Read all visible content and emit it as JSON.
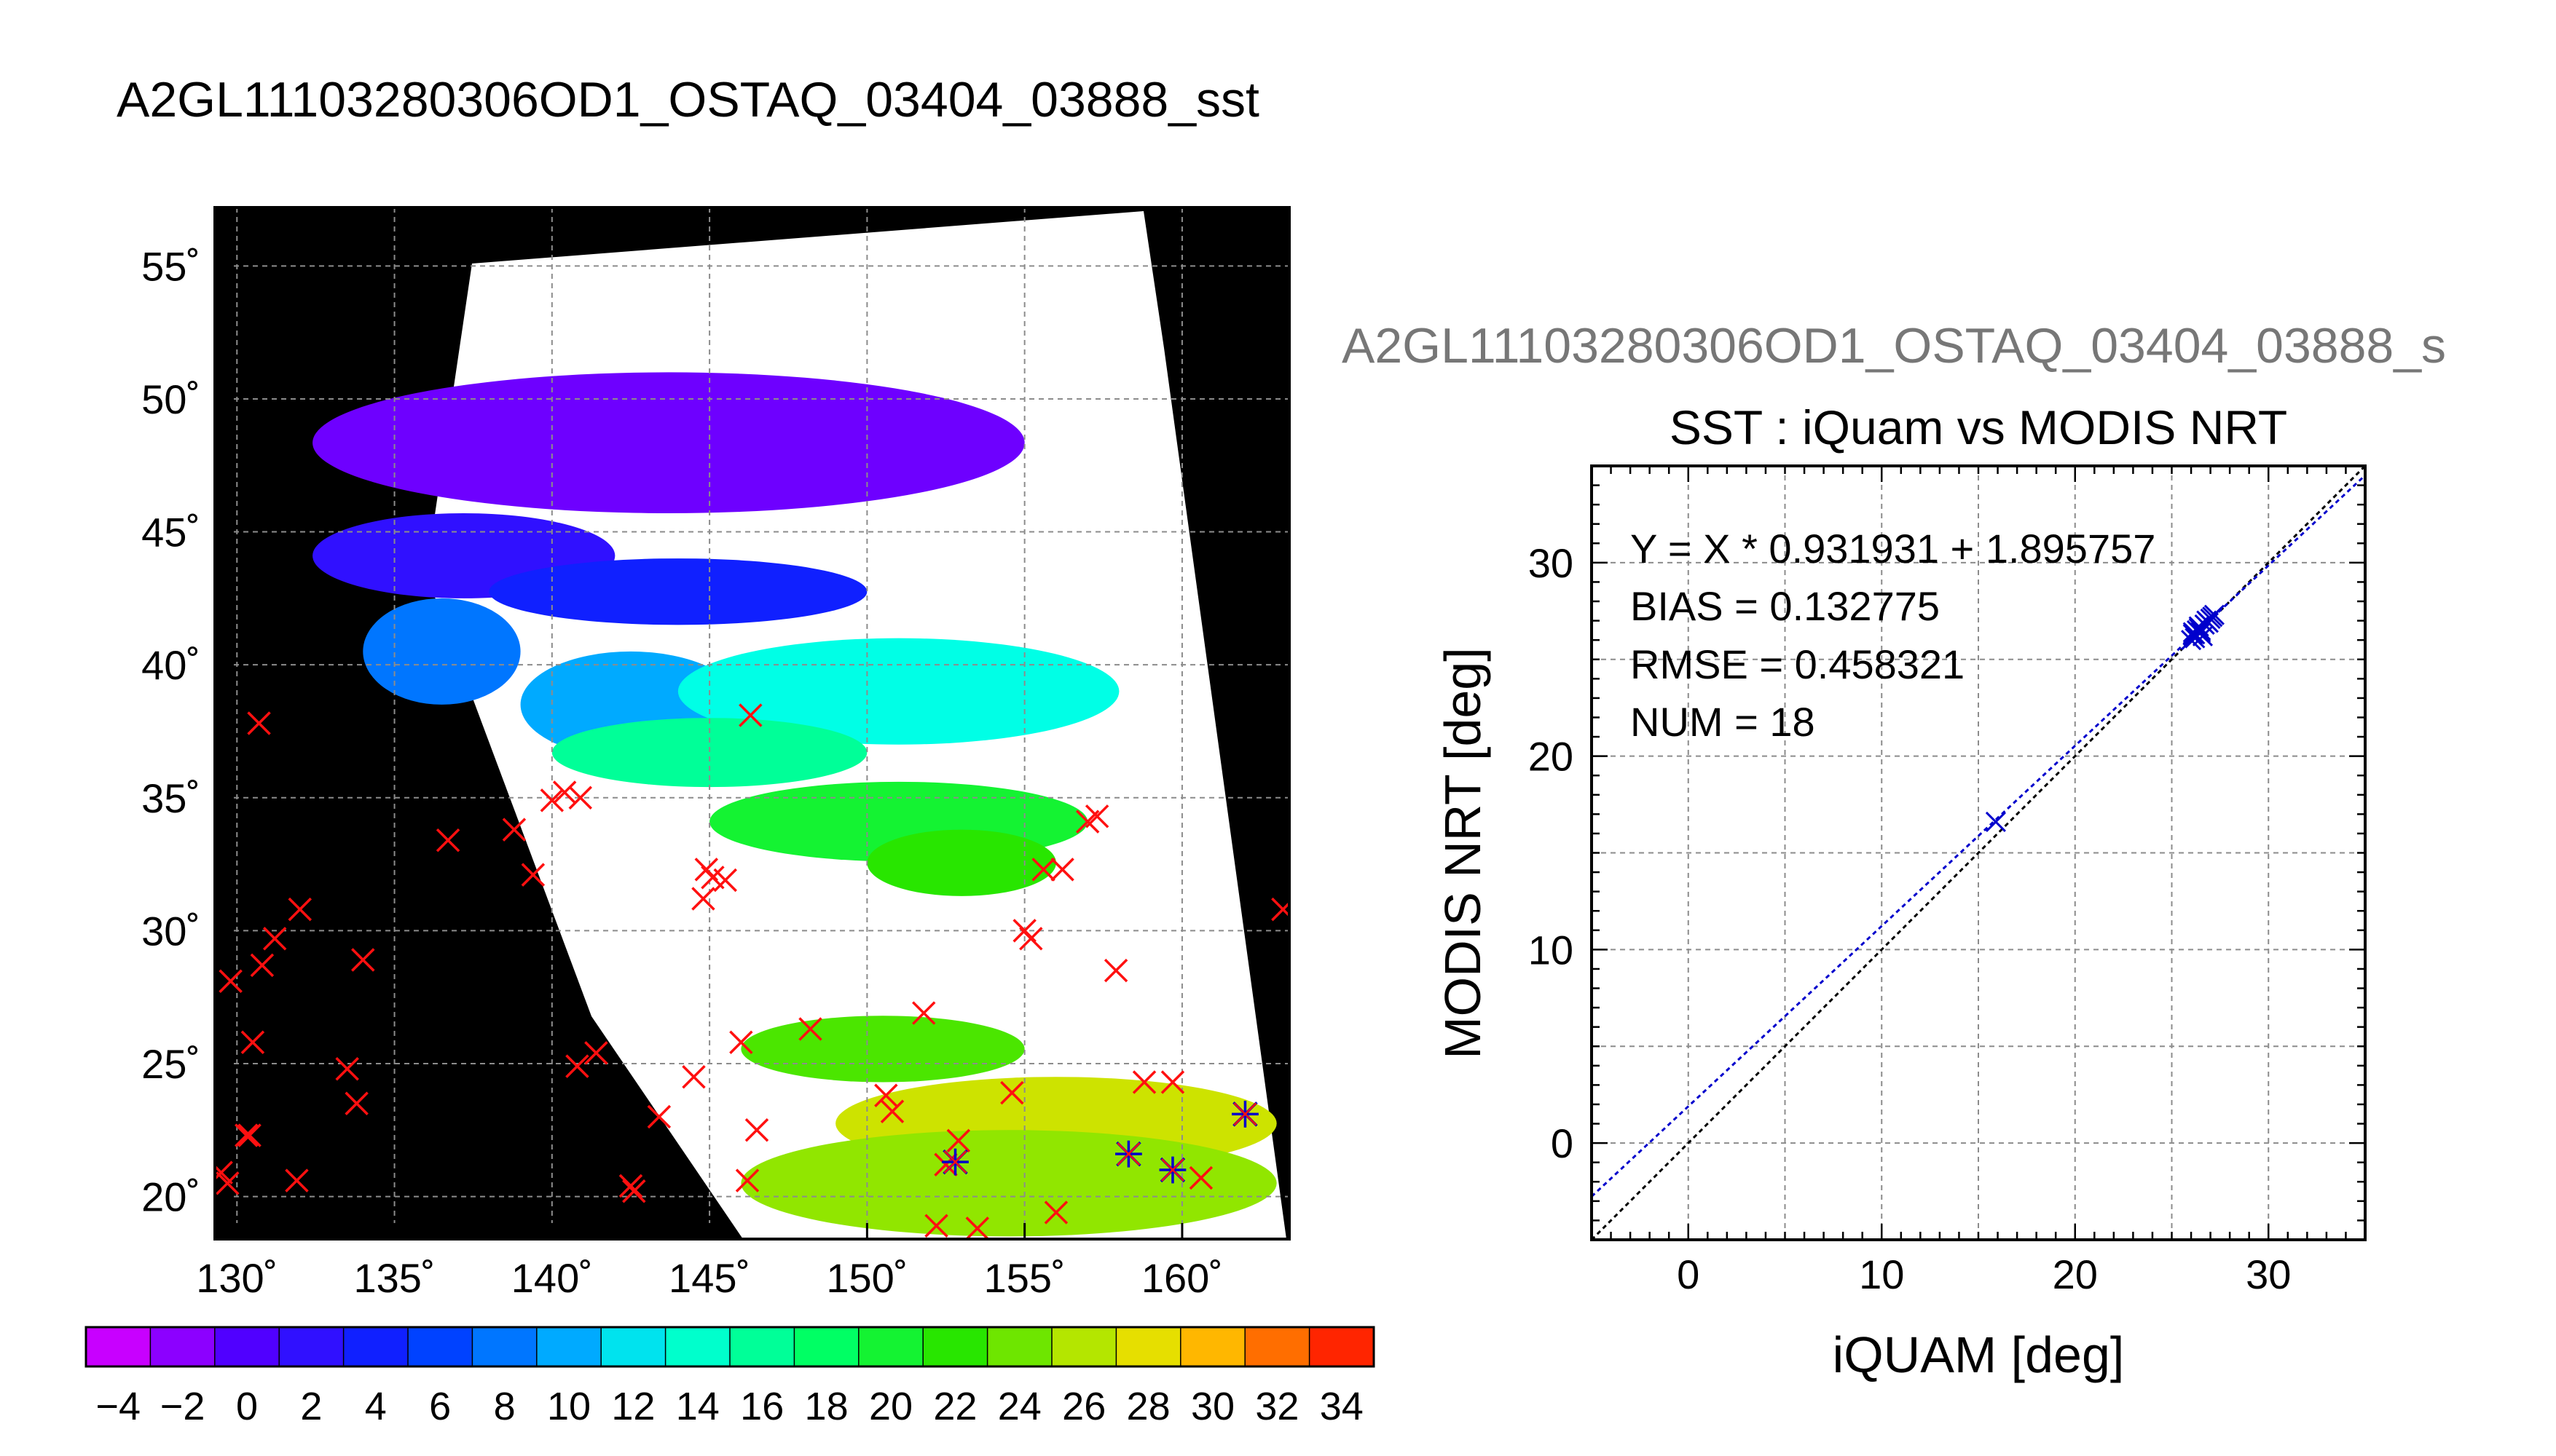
{
  "page": {
    "title": "A2GL11103280306OD1_OSTAQ_03404_03888_sst",
    "right_title": "A2GL11103280306OD1_OSTAQ_03404_03888_s"
  },
  "colors": {
    "map_background": "#000000",
    "land": "#ffffff",
    "match_marker": "#ff1010",
    "matchup_marker": "#0000cc",
    "fit_line": "#0000cc",
    "one_to_one_line": "#000000",
    "grid": "#888888"
  },
  "chart_data": [
    {
      "type": "scatter",
      "subtype": "map",
      "lon_ticks": [
        130,
        135,
        140,
        145,
        150,
        155,
        160
      ],
      "lon_tick_labels": [
        "130˚",
        "135˚",
        "140˚",
        "145˚",
        "150˚",
        "155˚",
        "160˚"
      ],
      "lat_ticks": [
        20,
        25,
        30,
        35,
        40,
        45,
        50,
        55
      ],
      "lat_tick_labels": [
        "20˚",
        "25˚",
        "30˚",
        "35˚",
        "40˚",
        "45˚",
        "50˚",
        "55˚"
      ],
      "xlim": [
        129.3,
        163.4
      ],
      "ylim": [
        18.4,
        57.2
      ],
      "grid": true,
      "sst_field": [
        {
          "lon": [
            132.4,
            155
          ],
          "lat": [
            45.7,
            51
          ],
          "sst": -1
        },
        {
          "lon": [
            132.4,
            142
          ],
          "lat": [
            42.5,
            45.7
          ],
          "sst": 2
        },
        {
          "lon": [
            138,
            150
          ],
          "lat": [
            41.5,
            44
          ],
          "sst": 4
        },
        {
          "lon": [
            134,
            139
          ],
          "lat": [
            38.5,
            42.5
          ],
          "sst": 8
        },
        {
          "lon": [
            139,
            146
          ],
          "lat": [
            36.5,
            40.5
          ],
          "sst": 10
        },
        {
          "lon": [
            144,
            158
          ],
          "lat": [
            37,
            41
          ],
          "sst": 13
        },
        {
          "lon": [
            140,
            150
          ],
          "lat": [
            35.4,
            38
          ],
          "sst": 16
        },
        {
          "lon": [
            145,
            157
          ],
          "lat": [
            32.6,
            35.6
          ],
          "sst": 20
        },
        {
          "lon": [
            150,
            156
          ],
          "lat": [
            31.3,
            33.8
          ],
          "sst": 22
        },
        {
          "lon": [
            146,
            155
          ],
          "lat": [
            24.3,
            26.8
          ],
          "sst": 23
        },
        {
          "lon": [
            149,
            163
          ],
          "lat": [
            21,
            24.5
          ],
          "sst": 27
        },
        {
          "lon": [
            146,
            163
          ],
          "lat": [
            18.5,
            22.5
          ],
          "sst": 25
        }
      ],
      "sst_patch_labels": [
        "",
        "",
        "",
        "",
        "",
        "",
        "",
        "",
        "",
        "",
        "",
        ""
      ],
      "match_points": {
        "lon": [
          130.7,
          129.5,
          129.7,
          129.8,
          130.3,
          130.8,
          131.2,
          132.0,
          130.5,
          130.4,
          131.9,
          133.5,
          133.8,
          134.0,
          136.7,
          138.8,
          139.4,
          140.0,
          140.4,
          140.9,
          140.8,
          141.4,
          142.5,
          142.6,
          143.4,
          144.5,
          144.8,
          145.1,
          144.9,
          145.5,
          146.0,
          146.2,
          146.3,
          146.5,
          148.2,
          150.6,
          150.8,
          151.8,
          152.5,
          152.9,
          155.0,
          155.2,
          155.6,
          154.6,
          156.0,
          152.2,
          153.5,
          156.2,
          157.0,
          157.3,
          157.9,
          158.8,
          159.7,
          160.6,
          162.0,
          163.2
        ],
        "lat": [
          37.8,
          20.9,
          20.5,
          28.1,
          22.3,
          28.7,
          29.7,
          30.8,
          25.8,
          22.3,
          20.6,
          24.8,
          23.5,
          28.9,
          33.4,
          33.8,
          32.1,
          34.9,
          35.2,
          35.0,
          24.9,
          25.4,
          20.4,
          20.2,
          23.0,
          24.5,
          31.2,
          32.0,
          32.3,
          31.9,
          25.8,
          20.6,
          38.1,
          22.5,
          26.3,
          23.8,
          23.2,
          26.9,
          21.2,
          22.1,
          30.0,
          29.7,
          32.3,
          23.9,
          19.4,
          18.9,
          18.8,
          32.3,
          34.1,
          34.3,
          28.5,
          24.3,
          24.3,
          20.7,
          23.1,
          30.8
        ]
      },
      "matchup_points": {
        "lon": [
          152.8,
          158.3,
          159.7,
          162.0
        ],
        "lat": [
          21.3,
          21.6,
          21.0,
          23.1
        ]
      },
      "colorbar": {
        "min": -5,
        "max": 35,
        "step": 2,
        "tick_labels": [
          "−4",
          "−2",
          "0",
          "2",
          "4",
          "6",
          "8",
          "10",
          "12",
          "14",
          "16",
          "18",
          "20",
          "22",
          "24",
          "26",
          "28",
          "30",
          "32",
          "34"
        ]
      }
    },
    {
      "type": "scatter",
      "title": "SST : iQuam vs MODIS NRT",
      "xlabel": "iQUAM [deg]",
      "ylabel": "MODIS NRT [deg]",
      "xlim": [
        -5,
        35
      ],
      "ylim": [
        -5,
        35
      ],
      "x_ticks": [
        0,
        10,
        20,
        30
      ],
      "y_ticks": [
        0,
        10,
        20,
        30
      ],
      "grid": true,
      "points": {
        "x": [
          15.9,
          26.1,
          26.4,
          26.7,
          26.2,
          26.5,
          27.0,
          27.2,
          26.0,
          26.8,
          26.3,
          26.6,
          26.9,
          26.1,
          26.4,
          27.1,
          26.5,
          26.2
        ],
        "y": [
          16.6,
          26.3,
          26.6,
          26.8,
          26.1,
          26.4,
          27.1,
          27.3,
          26.0,
          27.0,
          26.5,
          26.2,
          26.9,
          26.4,
          26.7,
          27.2,
          26.5,
          26.3
        ]
      },
      "fit": {
        "slope": 0.931931,
        "intercept": 1.895757
      },
      "stats": {
        "equation": "Y = X * 0.931931 + 1.895757",
        "bias": "BIAS = 0.132775",
        "rmse": "RMSE = 0.458321",
        "num": "NUM = 18"
      }
    }
  ]
}
